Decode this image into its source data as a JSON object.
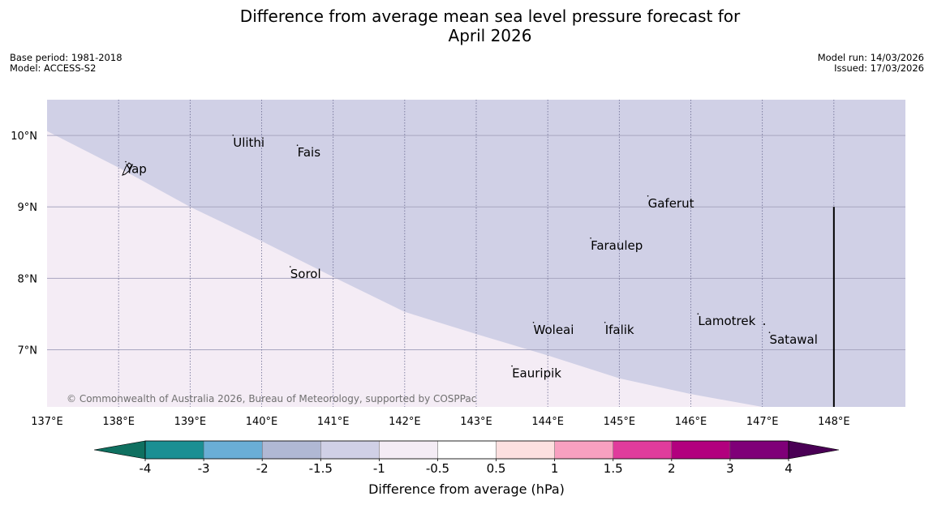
{
  "title_line1": "Difference from average mean sea level pressure forecast for",
  "title_line2": "April 2026",
  "meta": {
    "base_period": "Base period: 1981-2018",
    "model": "Model: ACCESS-S2",
    "model_run": "Model run: 14/03/2026",
    "issued": "Issued: 17/03/2026"
  },
  "map": {
    "lon_range": [
      137,
      149
    ],
    "lat_range": [
      6.2,
      10.5
    ],
    "lon_ticks": [
      "137°E",
      "138°E",
      "139°E",
      "140°E",
      "141°E",
      "142°E",
      "143°E",
      "144°E",
      "145°E",
      "146°E",
      "147°E",
      "148°E"
    ],
    "lat_ticks": [
      "7°N",
      "8°N",
      "9°N",
      "10°N"
    ],
    "credit": "© Commonwealth of Australia 2026, Bureau of Meteorology, supported by COSPPac",
    "places": [
      {
        "name": "Ulithi",
        "lon": 139.6,
        "lat": 9.9
      },
      {
        "name": "Fais",
        "lon": 140.5,
        "lat": 9.76
      },
      {
        "name": "Yap",
        "lon": 138.1,
        "lat": 9.53
      },
      {
        "name": "Gaferut",
        "lon": 145.4,
        "lat": 9.05
      },
      {
        "name": "Faraulep",
        "lon": 144.6,
        "lat": 8.46
      },
      {
        "name": "Sorol",
        "lon": 140.4,
        "lat": 8.06
      },
      {
        "name": "Lamotrek",
        "lon": 146.1,
        "lat": 7.4
      },
      {
        "name": "Woleai",
        "lon": 143.8,
        "lat": 7.28
      },
      {
        "name": "Ifalik",
        "lon": 144.8,
        "lat": 7.28
      },
      {
        "name": "Satawal",
        "lon": 147.1,
        "lat": 7.14
      },
      {
        "name": "Eauripik",
        "lon": 143.5,
        "lat": 6.67
      }
    ]
  },
  "shading": {
    "boundary": [
      [
        137,
        10.06
      ],
      [
        138,
        9.55
      ],
      [
        139,
        9.0
      ],
      [
        140,
        8.52
      ],
      [
        141,
        8.02
      ],
      [
        142,
        7.53
      ],
      [
        143,
        7.22
      ],
      [
        144,
        6.92
      ],
      [
        145,
        6.6
      ],
      [
        146,
        6.38
      ],
      [
        147,
        6.2
      ]
    ],
    "north_color": "#d0d0e6",
    "south_color": "#f4ecf5",
    "north_level": "-1.5 to -1",
    "south_level": "-1 to -0.5"
  },
  "colorbar": {
    "label": "Difference from average (hPa)",
    "ticks": [
      "-4",
      "-3",
      "-2",
      "-1.5",
      "-1",
      "-0.5",
      "0.5",
      "1",
      "1.5",
      "2",
      "3",
      "4"
    ],
    "colors": [
      "#1a8f93",
      "#6aaed6",
      "#b0b8d4",
      "#d0d0e6",
      "#f4ecf5",
      "#ffffff",
      "#fde0e0",
      "#f8a0c0",
      "#e03c9c",
      "#b2007e",
      "#7f0078"
    ],
    "low_extend_color": "#0f7060",
    "high_extend_color": "#4a0055"
  }
}
